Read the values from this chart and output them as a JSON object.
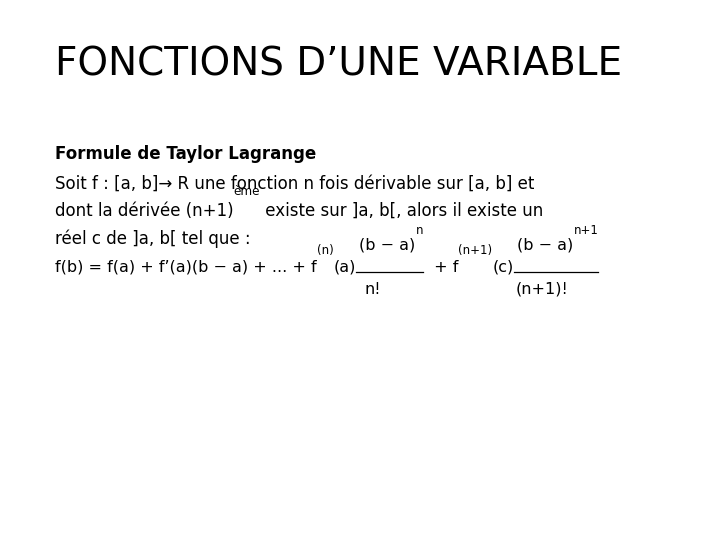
{
  "background_color": "#ffffff",
  "title": "FONCTIONS D’UNE VARIABLE",
  "title_fontsize": 28,
  "title_fontweight": "normal",
  "subtitle": "Formule de Taylor Lagrange",
  "subtitle_fontsize": 12,
  "subtitle_fontweight": "bold",
  "body_fontsize": 12,
  "formula_fontsize": 11.5,
  "formula_small_fontsize": 8.5,
  "line1": "Soit f : [a, b]→ R une fonction n fois dérivable sur [a, b] et",
  "line2_part1": "dont la dérivée (n+1)",
  "line2_sup": "ème",
  "line2_part3": " existe sur ]a, b[, alors il existe un",
  "line3": "réel c de ]a, b[ tel que :"
}
